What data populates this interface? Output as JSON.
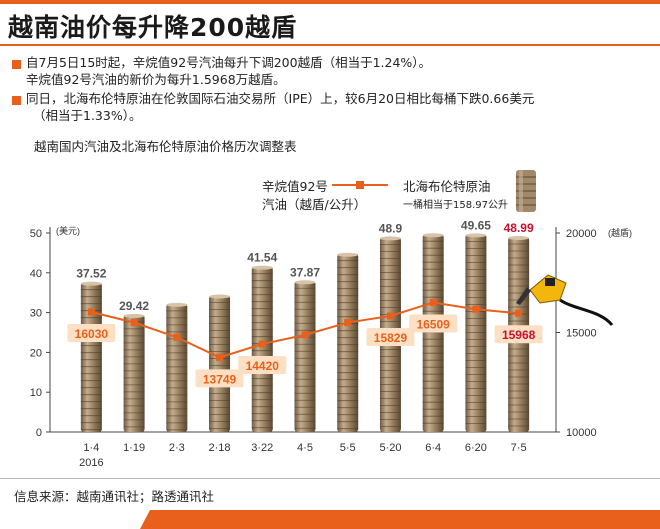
{
  "title": "越南油价每升降200越盾",
  "bullets": [
    {
      "lines": [
        "自7月5日15时起，辛烷值92号汽油每升下调200越盾（相当于1.24%）。",
        "辛烷值92号汽油的新价为每升1.5968万越盾。"
      ]
    },
    {
      "lines": [
        "同日，北海布伦特原油在伦敦国际石油交易所（IPE）上，较6月20日相比每桶下跌0.66美元",
        "（相当于1.33%）。"
      ]
    }
  ],
  "chart_subtitle": "越南国内汽油及北海布伦特原油价格历次调整表",
  "legend": {
    "gasoline_line1": "辛烷值92号",
    "gasoline_line2": "汽油（越盾/公升）",
    "brent_line1": "北海布伦特原油",
    "brent_line2": "一桶相当于158.97公升"
  },
  "source": "信息来源：越南通讯社；路透通讯社",
  "colors": {
    "accent": "#e8601c",
    "barrel": "#a08868",
    "highlight_red": "#c8102e",
    "label_box": "#fde0c4"
  },
  "chart_data": {
    "type": "bar",
    "categories": [
      "1·4",
      "1·19",
      "2·3",
      "2·18",
      "3·22",
      "4·5",
      "5·5",
      "5·20",
      "6·4",
      "6·20",
      "7·5"
    ],
    "category_sublabel": "2016",
    "left_axis": {
      "unit": "(美元)",
      "ylim": [
        0,
        50
      ],
      "ticks": [
        "0",
        "10",
        "20",
        "30",
        "40",
        "50"
      ]
    },
    "right_axis": {
      "unit": "(越盾)",
      "ylim": [
        10000,
        20000
      ],
      "ticks": [
        "10000",
        "15000",
        "20000"
      ]
    },
    "series": [
      {
        "name": "北海布伦特原油",
        "type": "bar",
        "axis": "left",
        "values": [
          37.52,
          29.42,
          32.2,
          34.3,
          41.54,
          37.87,
          44.8,
          48.9,
          49.7,
          49.65,
          48.99
        ],
        "labels": [
          "37.52",
          "29.42",
          "",
          "",
          "41.54",
          "37.87",
          "",
          "48.9",
          "",
          "49.65",
          "48.99"
        ]
      },
      {
        "name": "辛烷值92号汽油（越盾/公升）",
        "type": "line",
        "axis": "right",
        "values": [
          16030,
          15500,
          14760,
          13749,
          14420,
          14880,
          15500,
          15829,
          16509,
          16168,
          15968
        ],
        "labels": [
          "16030",
          "",
          "",
          "13749",
          "14420",
          "",
          "",
          "15829",
          "16509",
          "",
          "15968"
        ]
      }
    ],
    "grid": false
  }
}
